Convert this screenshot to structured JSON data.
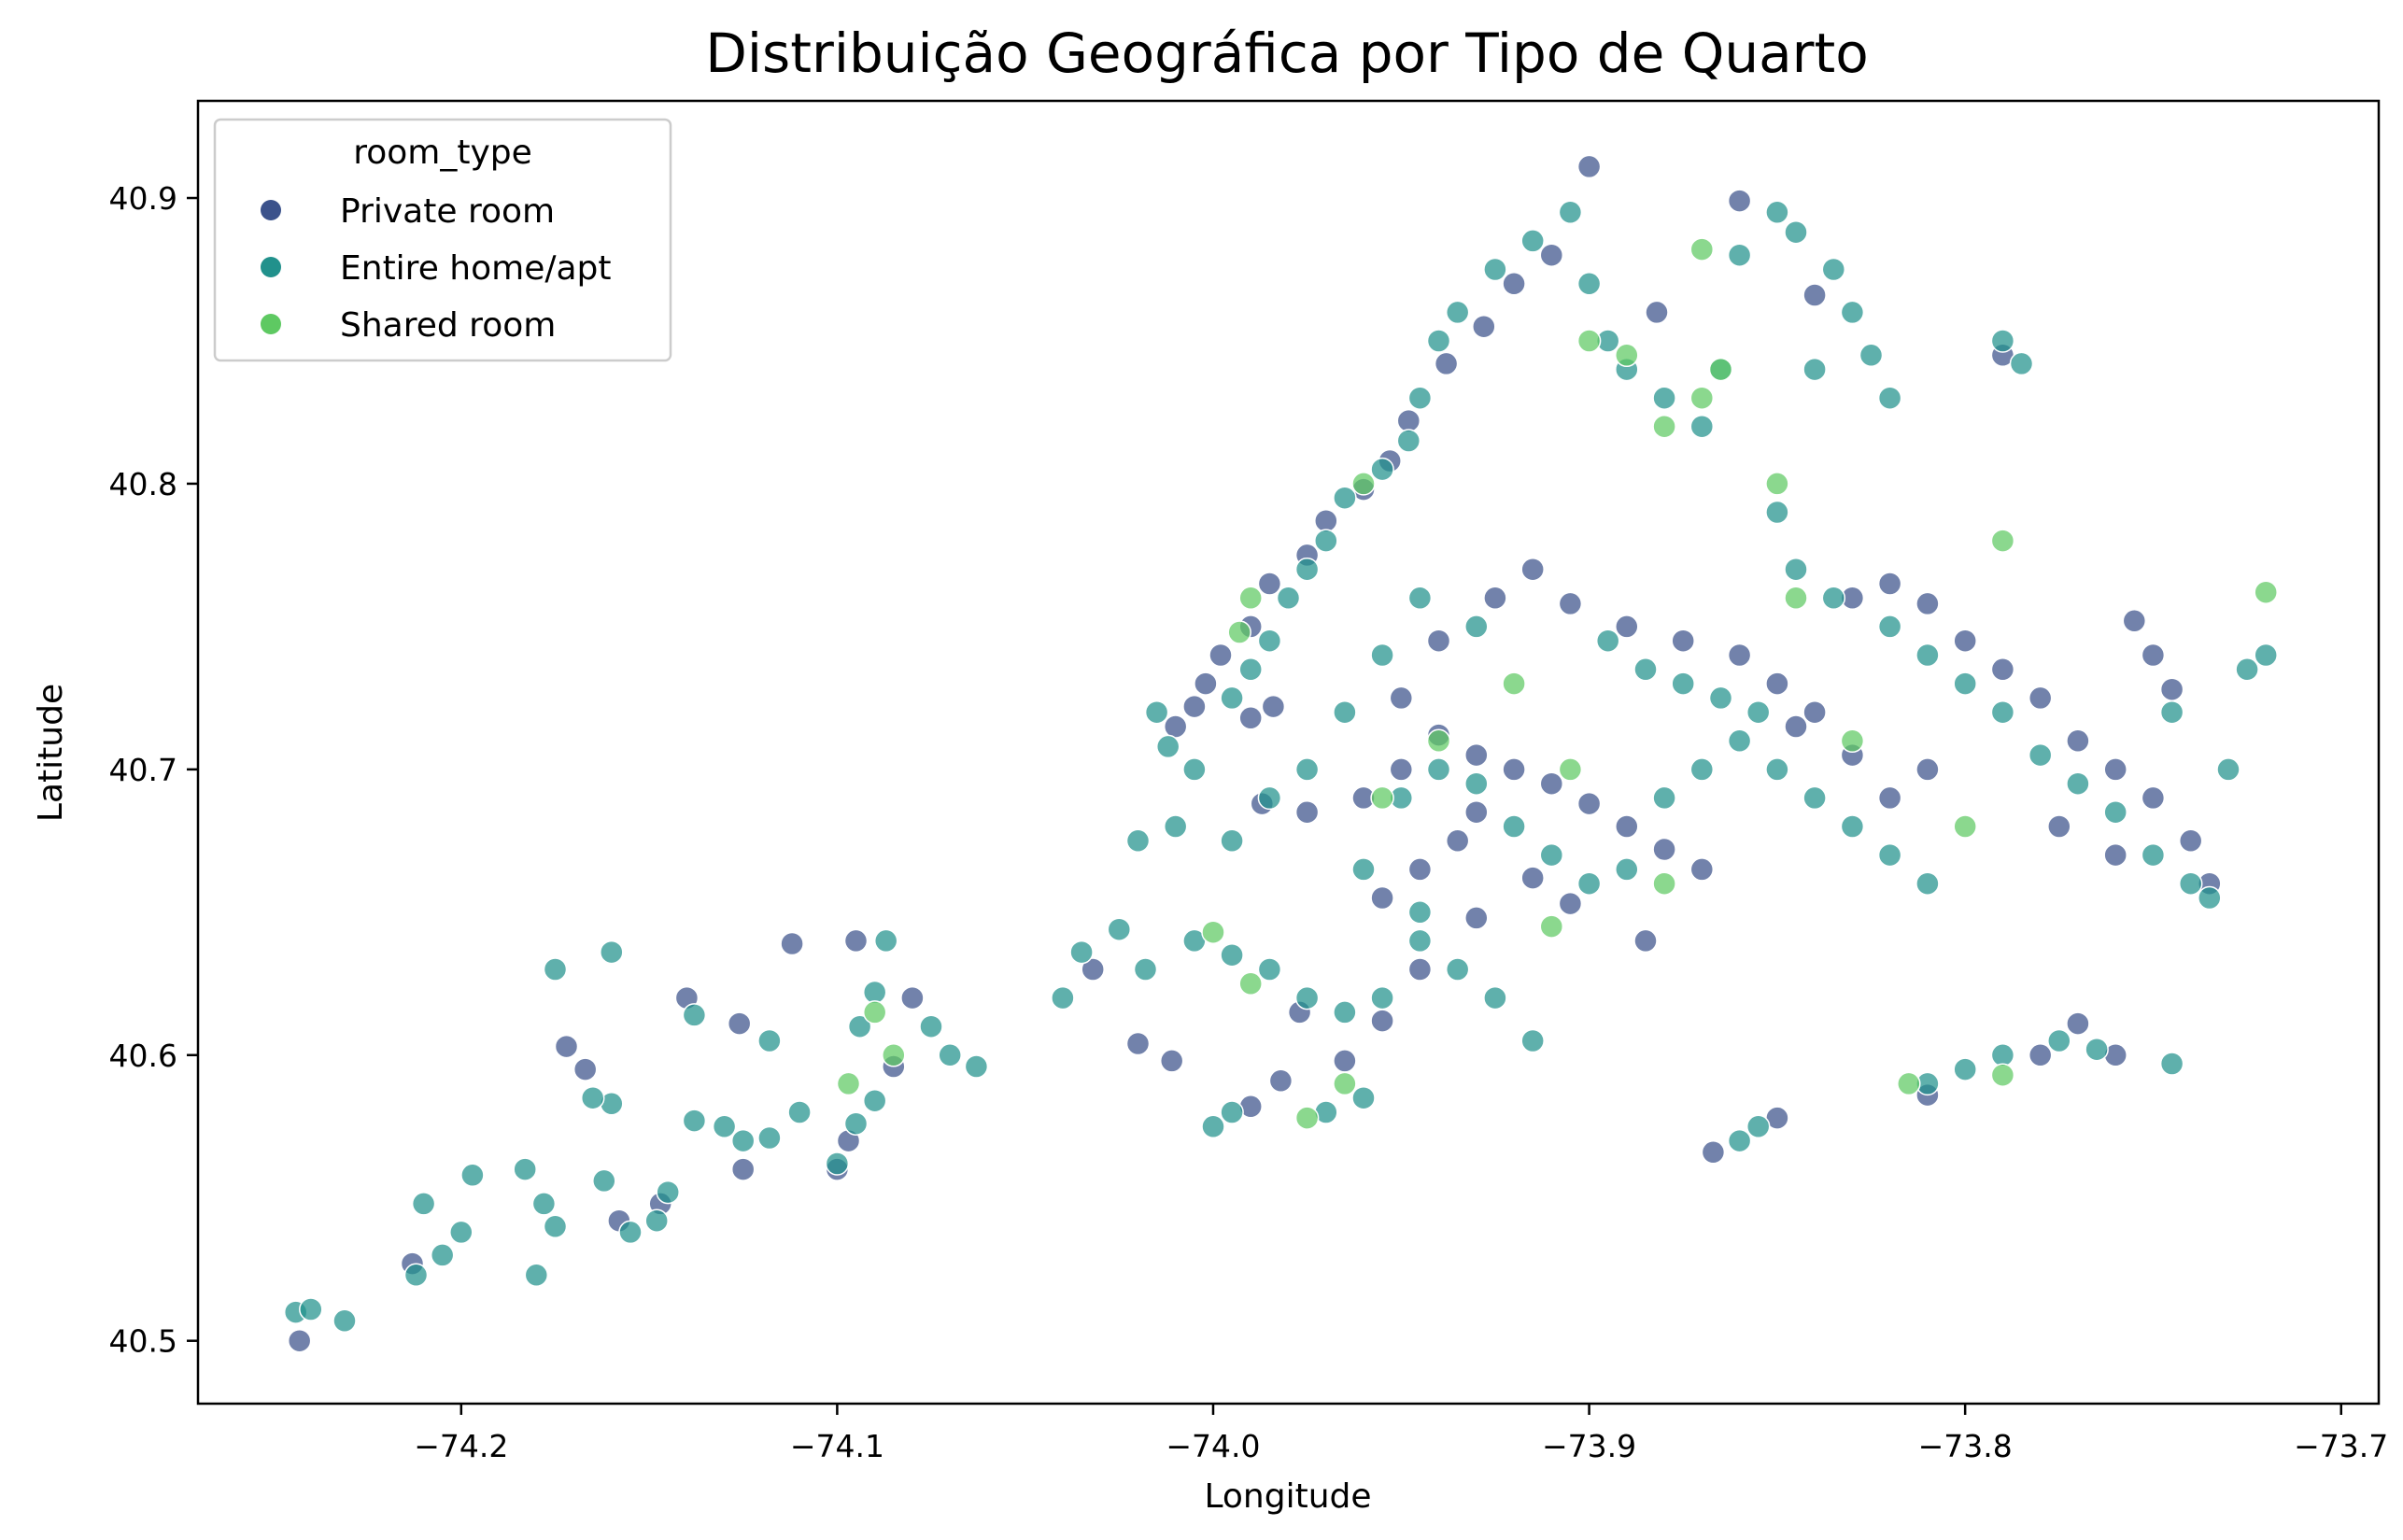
{
  "chart_data": {
    "type": "scatter",
    "title": "Distribuição Geográfica por Tipo de Quarto",
    "xlabel": "Longitude",
    "ylabel": "Latitude",
    "xlim": [
      -74.27,
      -73.69
    ],
    "ylim": [
      40.478,
      40.934
    ],
    "xticks": [
      -74.2,
      -74.1,
      -74.0,
      -73.9,
      -73.8,
      -73.7
    ],
    "xtick_labels": [
      "−74.2",
      "−74.1",
      "−74.0",
      "−73.9",
      "−73.8",
      "−73.7"
    ],
    "yticks": [
      40.5,
      40.6,
      40.7,
      40.8,
      40.9
    ],
    "ytick_labels": [
      "40.5",
      "40.6",
      "40.7",
      "40.8",
      "40.9"
    ],
    "grid": false,
    "legend": {
      "title": "room_type",
      "placement": "top-left",
      "entries": [
        {
          "name": "Private room",
          "color": "#3b528b"
        },
        {
          "name": "Entire home/apt",
          "color": "#21918c"
        },
        {
          "name": "Shared room",
          "color": "#5ec962"
        }
      ]
    },
    "series": [
      {
        "name": "Private room",
        "color": "#3b528b",
        "points": [
          [
            -74.243,
            40.5
          ],
          [
            -74.213,
            40.527
          ],
          [
            -74.172,
            40.603
          ],
          [
            -74.167,
            40.595
          ],
          [
            -74.158,
            40.542
          ],
          [
            -74.147,
            40.548
          ],
          [
            -74.125,
            40.56
          ],
          [
            -74.1,
            40.56
          ],
          [
            -74.097,
            40.57
          ],
          [
            -74.085,
            40.596
          ],
          [
            -74.08,
            40.62
          ],
          [
            -74.095,
            40.64
          ],
          [
            -74.112,
            40.639
          ],
          [
            -74.126,
            40.611
          ],
          [
            -74.14,
            40.62
          ],
          [
            -74.032,
            40.63
          ],
          [
            -74.02,
            40.604
          ],
          [
            -74.011,
            40.598
          ],
          [
            -73.99,
            40.582
          ],
          [
            -73.982,
            40.591
          ],
          [
            -73.977,
            40.615
          ],
          [
            -73.965,
            40.598
          ],
          [
            -73.955,
            40.612
          ],
          [
            -73.945,
            40.63
          ],
          [
            -73.93,
            40.648
          ],
          [
            -73.915,
            40.662
          ],
          [
            -73.905,
            40.653
          ],
          [
            -73.885,
            40.64
          ],
          [
            -73.867,
            40.566
          ],
          [
            -73.85,
            40.578
          ],
          [
            -73.81,
            40.586
          ],
          [
            -73.78,
            40.6
          ],
          [
            -73.77,
            40.611
          ],
          [
            -73.76,
            40.6
          ],
          [
            -73.755,
            40.752
          ],
          [
            -73.79,
            40.845
          ],
          [
            -73.84,
            40.866
          ],
          [
            -73.86,
            40.899
          ],
          [
            -73.882,
            40.86
          ],
          [
            -73.9,
            40.911
          ],
          [
            -73.91,
            40.88
          ],
          [
            -73.92,
            40.87
          ],
          [
            -73.928,
            40.855
          ],
          [
            -73.938,
            40.842
          ],
          [
            -73.948,
            40.822
          ],
          [
            -73.953,
            40.808
          ],
          [
            -73.96,
            40.798
          ],
          [
            -73.97,
            40.787
          ],
          [
            -73.975,
            40.775
          ],
          [
            -73.985,
            40.765
          ],
          [
            -73.99,
            40.75
          ],
          [
            -73.998,
            40.74
          ],
          [
            -74.002,
            40.73
          ],
          [
            -74.005,
            40.722
          ],
          [
            -74.01,
            40.715
          ],
          [
            -73.99,
            40.718
          ],
          [
            -73.984,
            40.722
          ],
          [
            -73.987,
            40.688
          ],
          [
            -73.975,
            40.685
          ],
          [
            -73.96,
            40.69
          ],
          [
            -73.95,
            40.7
          ],
          [
            -73.94,
            40.712
          ],
          [
            -73.93,
            40.705
          ],
          [
            -73.92,
            40.7
          ],
          [
            -73.91,
            40.695
          ],
          [
            -73.9,
            40.688
          ],
          [
            -73.89,
            40.68
          ],
          [
            -73.88,
            40.672
          ],
          [
            -73.87,
            40.665
          ],
          [
            -73.935,
            40.675
          ],
          [
            -73.945,
            40.665
          ],
          [
            -73.955,
            40.655
          ],
          [
            -73.93,
            40.685
          ],
          [
            -73.95,
            40.725
          ],
          [
            -73.94,
            40.745
          ],
          [
            -73.925,
            40.76
          ],
          [
            -73.915,
            40.77
          ],
          [
            -73.905,
            40.758
          ],
          [
            -73.89,
            40.75
          ],
          [
            -73.875,
            40.745
          ],
          [
            -73.86,
            40.74
          ],
          [
            -73.85,
            40.73
          ],
          [
            -73.84,
            40.72
          ],
          [
            -73.83,
            40.76
          ],
          [
            -73.82,
            40.765
          ],
          [
            -73.81,
            40.758
          ],
          [
            -73.8,
            40.745
          ],
          [
            -73.79,
            40.735
          ],
          [
            -73.78,
            40.725
          ],
          [
            -73.77,
            40.71
          ],
          [
            -73.76,
            40.7
          ],
          [
            -73.75,
            40.69
          ],
          [
            -73.74,
            40.675
          ],
          [
            -73.735,
            40.66
          ],
          [
            -73.81,
            40.7
          ],
          [
            -73.82,
            40.69
          ],
          [
            -73.83,
            40.705
          ],
          [
            -73.845,
            40.715
          ],
          [
            -73.75,
            40.74
          ],
          [
            -73.745,
            40.728
          ],
          [
            -73.76,
            40.67
          ],
          [
            -73.775,
            40.68
          ]
        ]
      },
      {
        "name": "Entire home/apt",
        "color": "#21918c",
        "points": [
          [
            -74.244,
            40.51
          ],
          [
            -74.24,
            40.511
          ],
          [
            -74.231,
            40.507
          ],
          [
            -74.212,
            40.523
          ],
          [
            -74.205,
            40.53
          ],
          [
            -74.2,
            40.538
          ],
          [
            -74.21,
            40.548
          ],
          [
            -74.197,
            40.558
          ],
          [
            -74.183,
            40.56
          ],
          [
            -74.178,
            40.548
          ],
          [
            -74.175,
            40.54
          ],
          [
            -74.18,
            40.523
          ],
          [
            -74.162,
            40.556
          ],
          [
            -74.155,
            40.538
          ],
          [
            -74.148,
            40.542
          ],
          [
            -74.145,
            40.552
          ],
          [
            -74.138,
            40.577
          ],
          [
            -74.13,
            40.575
          ],
          [
            -74.125,
            40.57
          ],
          [
            -74.118,
            40.571
          ],
          [
            -74.11,
            40.58
          ],
          [
            -74.1,
            40.562
          ],
          [
            -74.095,
            40.576
          ],
          [
            -74.09,
            40.584
          ],
          [
            -74.094,
            40.61
          ],
          [
            -74.09,
            40.622
          ],
          [
            -74.087,
            40.64
          ],
          [
            -74.075,
            40.61
          ],
          [
            -74.07,
            40.6
          ],
          [
            -74.063,
            40.596
          ],
          [
            -74.118,
            40.605
          ],
          [
            -74.138,
            40.614
          ],
          [
            -74.16,
            40.583
          ],
          [
            -74.165,
            40.585
          ],
          [
            -74.175,
            40.63
          ],
          [
            -74.16,
            40.636
          ],
          [
            -74.04,
            40.62
          ],
          [
            -74.035,
            40.636
          ],
          [
            -74.025,
            40.644
          ],
          [
            -74.018,
            40.63
          ],
          [
            -74.005,
            40.64
          ],
          [
            -73.995,
            40.635
          ],
          [
            -73.985,
            40.63
          ],
          [
            -73.975,
            40.62
          ],
          [
            -73.965,
            40.615
          ],
          [
            -73.955,
            40.62
          ],
          [
            -73.945,
            40.64
          ],
          [
            -73.935,
            40.63
          ],
          [
            -73.925,
            40.62
          ],
          [
            -73.915,
            40.605
          ],
          [
            -74.0,
            40.575
          ],
          [
            -73.995,
            40.58
          ],
          [
            -73.97,
            40.58
          ],
          [
            -73.96,
            40.585
          ],
          [
            -74.012,
            40.708
          ],
          [
            -74.015,
            40.72
          ],
          [
            -74.02,
            40.675
          ],
          [
            -74.01,
            40.68
          ],
          [
            -74.005,
            40.7
          ],
          [
            -73.995,
            40.725
          ],
          [
            -73.99,
            40.735
          ],
          [
            -73.985,
            40.745
          ],
          [
            -73.98,
            40.76
          ],
          [
            -73.975,
            40.77
          ],
          [
            -73.97,
            40.78
          ],
          [
            -73.965,
            40.795
          ],
          [
            -73.955,
            40.805
          ],
          [
            -73.948,
            40.815
          ],
          [
            -73.945,
            40.83
          ],
          [
            -73.94,
            40.85
          ],
          [
            -73.935,
            40.86
          ],
          [
            -73.925,
            40.875
          ],
          [
            -73.915,
            40.885
          ],
          [
            -73.905,
            40.895
          ],
          [
            -73.9,
            40.87
          ],
          [
            -73.895,
            40.85
          ],
          [
            -73.89,
            40.84
          ],
          [
            -73.88,
            40.83
          ],
          [
            -73.87,
            40.82
          ],
          [
            -73.865,
            40.84
          ],
          [
            -73.86,
            40.88
          ],
          [
            -73.85,
            40.895
          ],
          [
            -73.845,
            40.888
          ],
          [
            -73.835,
            40.875
          ],
          [
            -73.83,
            40.86
          ],
          [
            -73.825,
            40.845
          ],
          [
            -73.82,
            40.83
          ],
          [
            -73.84,
            40.84
          ],
          [
            -73.85,
            40.79
          ],
          [
            -73.845,
            40.77
          ],
          [
            -73.835,
            40.76
          ],
          [
            -73.82,
            40.75
          ],
          [
            -73.81,
            40.74
          ],
          [
            -73.8,
            40.73
          ],
          [
            -73.79,
            40.72
          ],
          [
            -73.78,
            40.705
          ],
          [
            -73.77,
            40.695
          ],
          [
            -73.76,
            40.685
          ],
          [
            -73.75,
            40.67
          ],
          [
            -73.74,
            40.66
          ],
          [
            -73.735,
            40.655
          ],
          [
            -73.73,
            40.7
          ],
          [
            -73.72,
            40.74
          ],
          [
            -73.725,
            40.735
          ],
          [
            -73.745,
            40.72
          ],
          [
            -73.79,
            40.85
          ],
          [
            -73.785,
            40.842
          ],
          [
            -73.81,
            40.59
          ],
          [
            -73.8,
            40.595
          ],
          [
            -73.79,
            40.6
          ],
          [
            -73.775,
            40.605
          ],
          [
            -73.765,
            40.602
          ],
          [
            -73.745,
            40.597
          ],
          [
            -73.855,
            40.575
          ],
          [
            -73.86,
            40.57
          ],
          [
            -73.95,
            40.69
          ],
          [
            -73.94,
            40.7
          ],
          [
            -73.93,
            40.695
          ],
          [
            -73.92,
            40.68
          ],
          [
            -73.91,
            40.67
          ],
          [
            -73.9,
            40.66
          ],
          [
            -73.89,
            40.665
          ],
          [
            -73.88,
            40.69
          ],
          [
            -73.87,
            40.7
          ],
          [
            -73.86,
            40.71
          ],
          [
            -73.85,
            40.7
          ],
          [
            -73.84,
            40.69
          ],
          [
            -73.83,
            40.68
          ],
          [
            -73.82,
            40.67
          ],
          [
            -73.81,
            40.66
          ],
          [
            -73.895,
            40.745
          ],
          [
            -73.885,
            40.735
          ],
          [
            -73.875,
            40.73
          ],
          [
            -73.865,
            40.725
          ],
          [
            -73.855,
            40.72
          ],
          [
            -73.93,
            40.75
          ],
          [
            -73.945,
            40.76
          ],
          [
            -73.955,
            40.74
          ],
          [
            -73.965,
            40.72
          ],
          [
            -73.975,
            40.7
          ],
          [
            -73.985,
            40.69
          ],
          [
            -73.995,
            40.675
          ],
          [
            -73.96,
            40.665
          ],
          [
            -73.945,
            40.65
          ]
        ]
      },
      {
        "name": "Shared room",
        "color": "#5ec962",
        "points": [
          [
            -74.097,
            40.59
          ],
          [
            -74.09,
            40.615
          ],
          [
            -74.085,
            40.6
          ],
          [
            -74.0,
            40.643
          ],
          [
            -73.99,
            40.625
          ],
          [
            -73.975,
            40.578
          ],
          [
            -73.965,
            40.59
          ],
          [
            -73.993,
            40.748
          ],
          [
            -73.99,
            40.76
          ],
          [
            -73.96,
            40.8
          ],
          [
            -73.9,
            40.85
          ],
          [
            -73.89,
            40.845
          ],
          [
            -73.88,
            40.82
          ],
          [
            -73.87,
            40.83
          ],
          [
            -73.865,
            40.84
          ],
          [
            -73.87,
            40.882
          ],
          [
            -73.85,
            40.8
          ],
          [
            -73.845,
            40.76
          ],
          [
            -73.83,
            40.71
          ],
          [
            -73.8,
            40.68
          ],
          [
            -73.79,
            40.78
          ],
          [
            -73.72,
            40.762
          ],
          [
            -73.79,
            40.593
          ],
          [
            -73.815,
            40.59
          ],
          [
            -73.92,
            40.73
          ],
          [
            -73.905,
            40.7
          ],
          [
            -73.88,
            40.66
          ],
          [
            -73.955,
            40.69
          ],
          [
            -73.94,
            40.71
          ],
          [
            -73.91,
            40.645
          ]
        ]
      }
    ]
  }
}
